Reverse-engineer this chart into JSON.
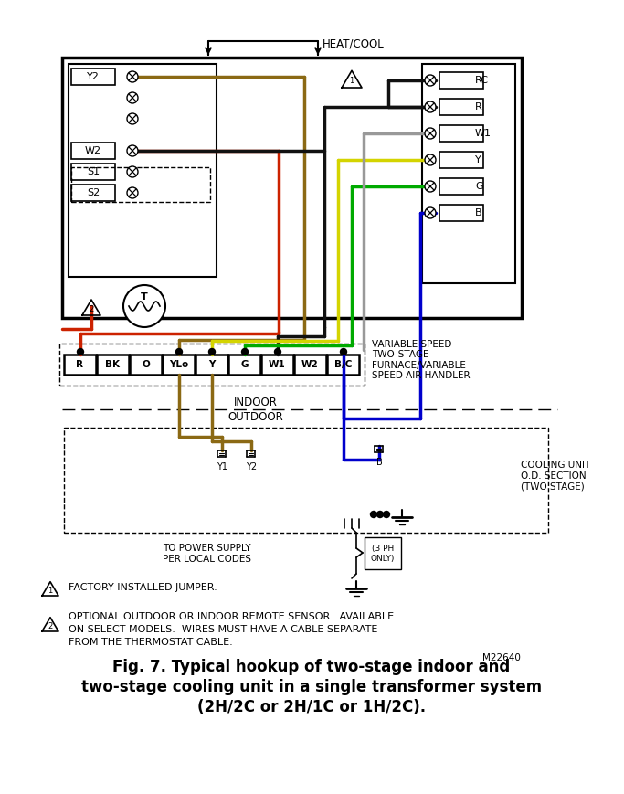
{
  "title_line1": "Fig. 7. Typical hookup of two-stage indoor and",
  "title_line2": "two-stage cooling unit in a single transformer system",
  "title_line3": "(2H/2C or 2H/1C or 1H/2C).",
  "bg_color": "#ffffff",
  "note1": "FACTORY INSTALLED JUMPER.",
  "note2_line1": "OPTIONAL OUTDOOR OR INDOOR REMOTE SENSOR.  AVAILABLE",
  "note2_line2": "ON SELECT MODELS.  WIRES MUST HAVE A CABLE SEPARATE",
  "note2_line3": "FROM THE THERMOSTAT CABLE.",
  "model_num": "M22640",
  "heat_cool_label": "HEAT/COOL",
  "furnace_terminals": [
    "R",
    "BK",
    "O",
    "YLo",
    "Y",
    "G",
    "W1",
    "W2",
    "B/C"
  ],
  "right_terms": [
    "RC",
    "R",
    "W1",
    "Y",
    "G",
    "B"
  ],
  "variable_speed_label": "VARIABLE SPEED\nTWO-STAGE\nFURNACE/VARIABLE\nSPEED AIR HANDLER",
  "cooling_unit_label": "COOLING UNIT\nO.D. SECTION\n(TWO STAGE)",
  "indoor_label": "INDOOR",
  "outdoor_label": "OUTDOOR",
  "power_label": "TO POWER SUPPLY\nPER LOCAL CODES",
  "ph_label": "(3 PH\nONLY)",
  "wire_red": "#cc2200",
  "wire_black": "#111111",
  "wire_brown": "#8B6914",
  "wire_yellow": "#d4d400",
  "wire_green": "#00aa00",
  "wire_gray": "#999999",
  "wire_blue": "#0000cc"
}
